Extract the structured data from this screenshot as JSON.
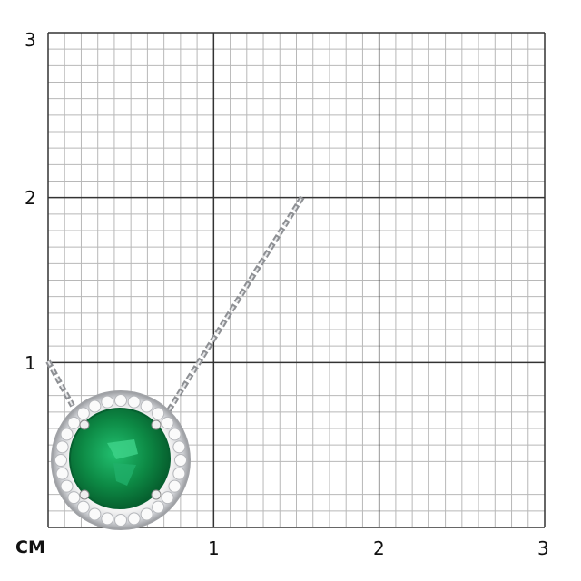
{
  "axis": {
    "unit_label": "CM",
    "x_ticks": [
      "1",
      "2",
      "3"
    ],
    "y_ticks": [
      "1",
      "2",
      "3"
    ],
    "range_cm": [
      0,
      3
    ],
    "minor_divisions_per_cm": 10
  },
  "colors": {
    "grid_minor": "#b8b8b8",
    "grid_major": "#333333",
    "emerald": "#0d8a45",
    "metal": "#c9cbcf"
  },
  "image": {
    "subject": "emerald-halo-pendant"
  }
}
